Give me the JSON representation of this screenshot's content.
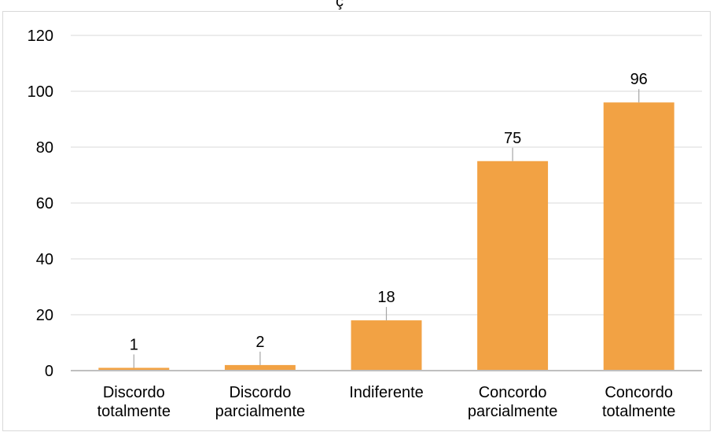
{
  "chart_data": {
    "type": "bar",
    "title_fragment": "ç",
    "categories": [
      [
        "Discordo",
        "totalmente"
      ],
      [
        "Discordo",
        "parcialmente"
      ],
      [
        "Indiferente"
      ],
      [
        "Concordo",
        "parcialmente"
      ],
      [
        "Concordo",
        "totalmente"
      ]
    ],
    "values": [
      1,
      2,
      18,
      75,
      96
    ],
    "data_labels": [
      "1",
      "2",
      "18",
      "75",
      "96"
    ],
    "y_ticks": [
      "0",
      "20",
      "40",
      "60",
      "80",
      "100",
      "120"
    ],
    "ylim": [
      0,
      120
    ],
    "bar_color": "#f2a244",
    "grid": true
  }
}
